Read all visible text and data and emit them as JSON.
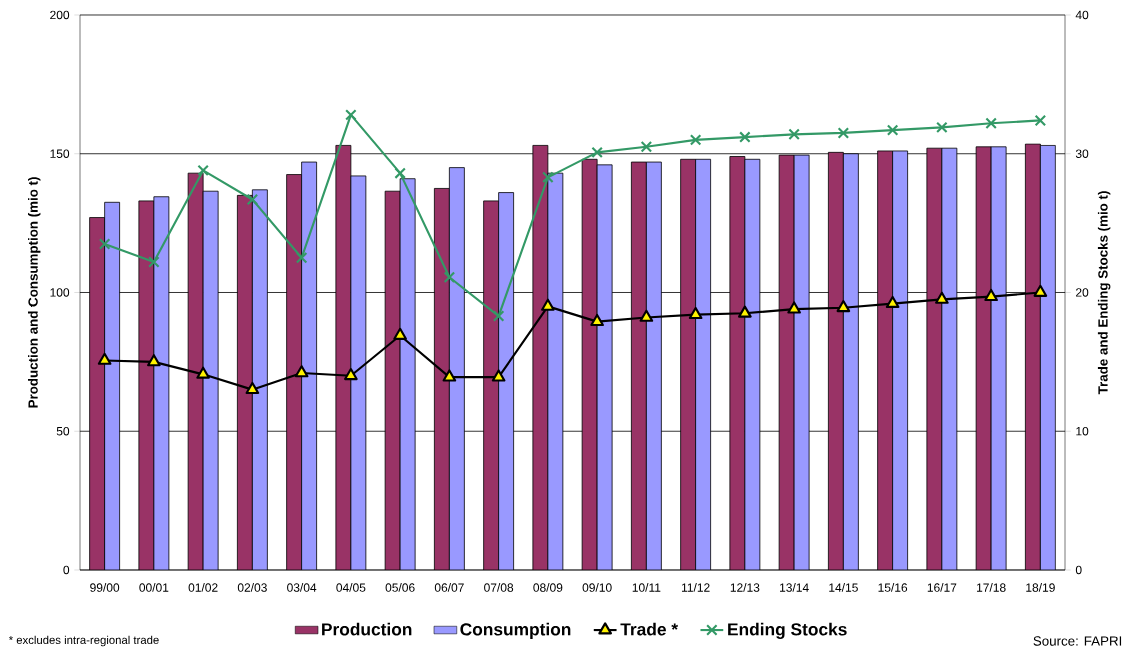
{
  "chart_data": {
    "type": "bar",
    "ylabel": "Production and Consumption (mio t)",
    "y2label": "Trade and Ending Stocks  (mio t)",
    "categories": [
      "99/00",
      "00/01",
      "01/02",
      "02/03",
      "03/04",
      "04/05",
      "05/06",
      "06/07",
      "07/08",
      "08/09",
      "09/10",
      "10/11",
      "11/12",
      "12/13",
      "13/14",
      "14/15",
      "15/16",
      "16/17",
      "17/18",
      "18/19"
    ],
    "series": [
      {
        "name": "Production",
        "color": "#993366",
        "values": [
          127,
          133,
          143,
          135,
          142.5,
          153,
          136.5,
          137.5,
          133,
          153,
          148,
          147,
          148,
          149,
          149.5,
          150.5,
          151,
          152,
          152.5,
          153.5
        ]
      },
      {
        "name": "Consumption",
        "color": "#9999ff",
        "values": [
          132.5,
          134.5,
          136.5,
          137,
          147,
          142,
          141,
          145,
          136,
          143,
          146,
          147,
          148,
          148,
          149.5,
          150,
          151,
          152,
          152.5,
          153
        ]
      },
      {
        "name": "Trade *",
        "type": "line",
        "axis": "y2",
        "color": "#000000",
        "marker": "triangle",
        "values": [
          15.1,
          15.0,
          14.1,
          13.0,
          14.2,
          14.0,
          16.9,
          13.9,
          13.9,
          19.0,
          17.9,
          18.2,
          18.4,
          18.5,
          18.8,
          18.9,
          19.2,
          19.5,
          19.7,
          20.0
        ]
      },
      {
        "name": "Ending Stocks",
        "type": "line",
        "axis": "y2",
        "color": "#339966",
        "marker": "cross",
        "values": [
          23.5,
          22.2,
          28.8,
          26.7,
          22.5,
          32.8,
          28.6,
          21.1,
          18.3,
          28.3,
          30.1,
          30.5,
          31.0,
          31.2,
          31.4,
          31.5,
          31.7,
          31.9,
          32.2,
          32.4
        ]
      }
    ],
    "ylim": [
      0,
      200
    ],
    "yticks": [
      0,
      50,
      100,
      150,
      200
    ],
    "y2lim": [
      0,
      40
    ],
    "y2ticks": [
      0,
      10,
      20,
      30,
      40
    ],
    "grid": "y",
    "legend": "bottom",
    "annotations": [
      "* excludes intra-regional trade",
      "Source: FAPRI"
    ]
  }
}
